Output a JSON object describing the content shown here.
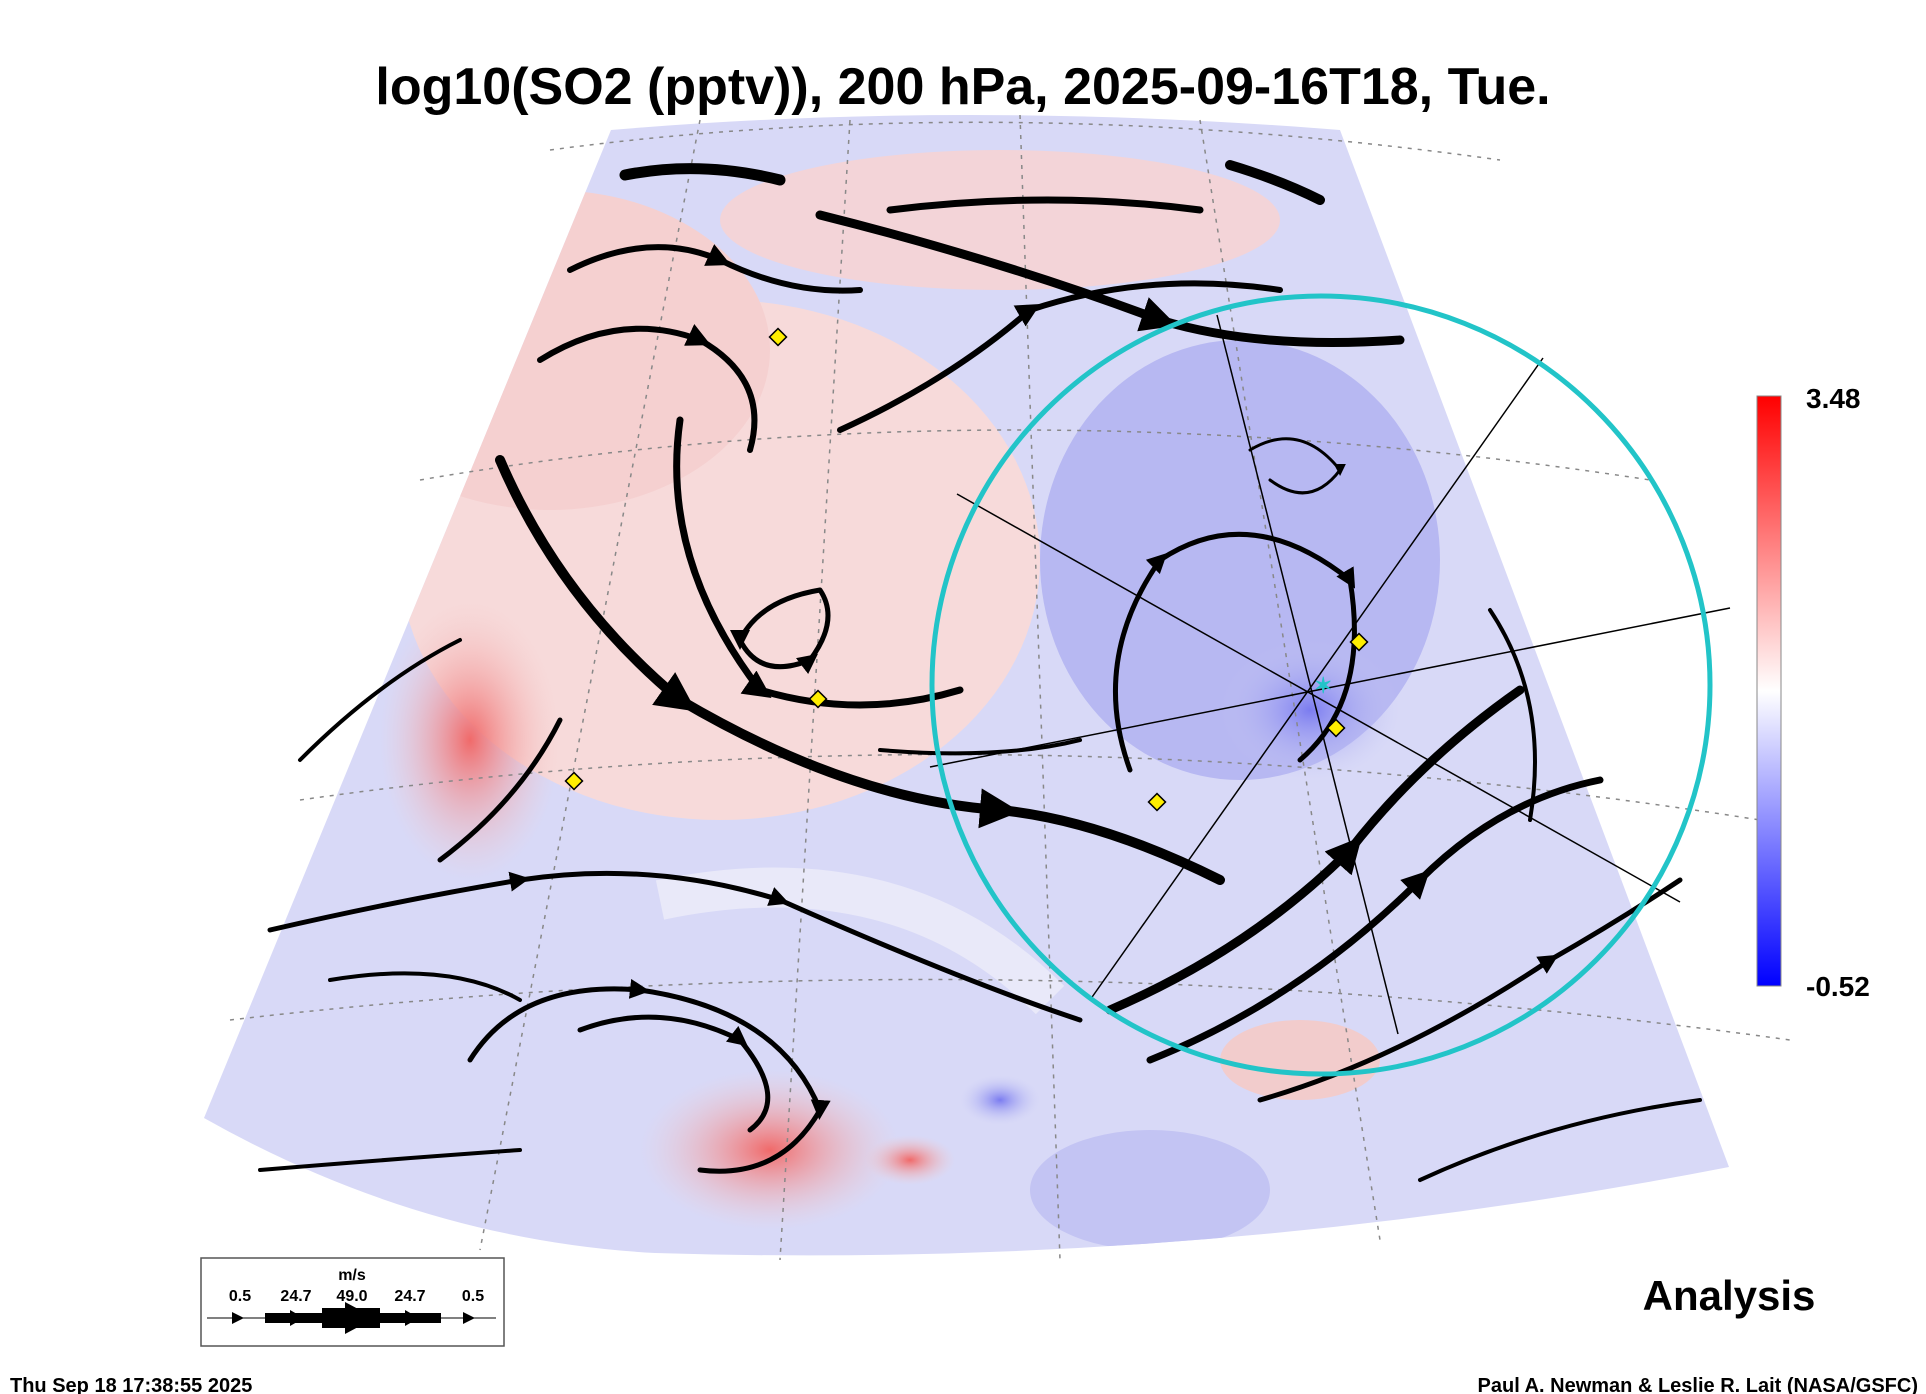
{
  "chart_data": {
    "type": "heatmap",
    "title": "log10(SO2 (pptv)), 200 hPa, 2025-09-16T18, Tue.",
    "colorbar": {
      "min": -0.52,
      "max": 3.48,
      "min_label": "-0.52",
      "max_label": "3.48",
      "colors": [
        "#0000ff",
        "#ffffff",
        "#ff0000"
      ]
    },
    "overlay": "wind streamlines",
    "wind_legend": {
      "units": "m/s",
      "labels": [
        "0.5",
        "24.7",
        "49.0",
        "24.7",
        "0.5"
      ]
    },
    "mode_label": "Analysis"
  },
  "footer": {
    "timestamp": "Thu Sep 18 17:38:55 2025",
    "credit": "Paul A. Newman & Leslie R. Lait (NASA/GSFC)"
  },
  "colors": {
    "ring": "#22c4c8",
    "marker": "#ffee00"
  }
}
